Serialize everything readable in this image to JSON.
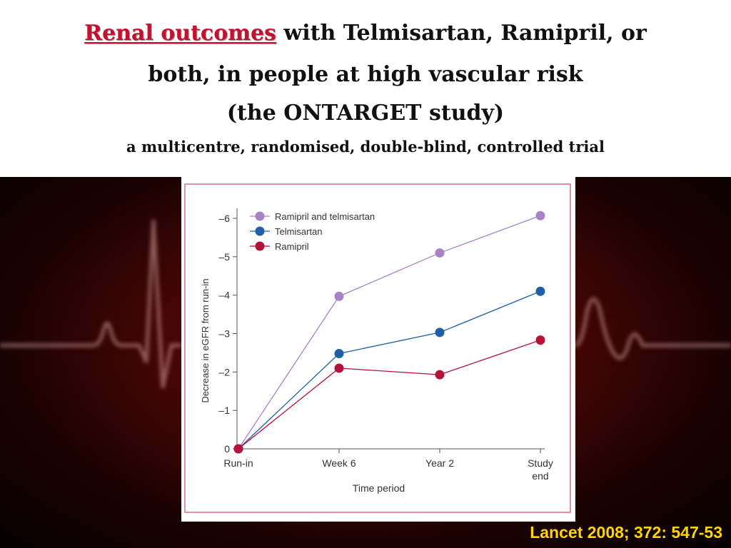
{
  "header": {
    "title_highlight": "Renal outcomes",
    "title_rest_1": " with Telmisartan, Ramipril, or",
    "title_line_2": "both, in people at high vascular risk",
    "title_line_3": "(the ONTARGET study)",
    "subtitle": "a multicentre, randomised, double-blind, controlled trial"
  },
  "citation": "Lancet 2008; 372: 547-53",
  "colors": {
    "highlight": "#c8102e",
    "citation": "#ffd400",
    "combo": "#a882c8",
    "telmisartan": "#1f5fa8",
    "ramipril": "#b5123a",
    "frame": "#d4708a"
  },
  "chart_data": {
    "type": "line",
    "categories": [
      "Run-in",
      "Week 6",
      "Year 2",
      "Study end"
    ],
    "category_lines": [
      [
        "Run-in"
      ],
      [
        "Week 6"
      ],
      [
        "Year 2"
      ],
      [
        "Study",
        "end"
      ]
    ],
    "xlabel": "Time period",
    "ylabel": "Decrease in eGFR from run-in",
    "ylim": [
      0,
      -6
    ],
    "yticks": [
      0,
      -1,
      -2,
      -3,
      -4,
      -5,
      -6
    ],
    "ytick_labels": [
      "0",
      "–1",
      "–2",
      "–3",
      "–4",
      "–5",
      "–6"
    ],
    "grid": false,
    "legend_position": "top-left",
    "series": [
      {
        "name": "Ramipril and telmisartan",
        "key": "combo",
        "values": [
          0,
          -3.97,
          -5.1,
          -6.07
        ]
      },
      {
        "name": "Telmisartan",
        "key": "telmisartan",
        "values": [
          0,
          -2.48,
          -3.03,
          -4.1
        ]
      },
      {
        "name": "Ramipril",
        "key": "ramipril",
        "values": [
          0,
          -2.1,
          -1.93,
          -2.83
        ]
      }
    ]
  }
}
